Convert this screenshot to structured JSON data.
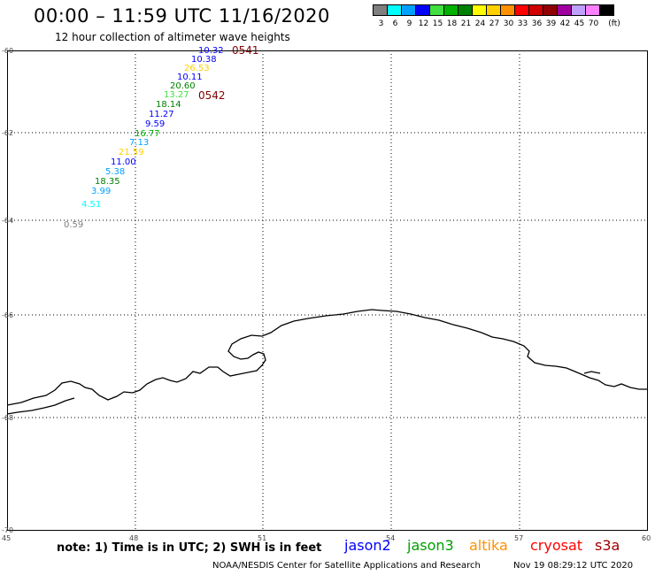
{
  "header": {
    "title": "00:00 – 11:59 UTC 11/16/2020",
    "subtitle": "12 hour collection of altimeter wave heights"
  },
  "legend": {
    "unit_label": "(ft)",
    "bins": [
      {
        "label": "3",
        "color": "#7f7f7f"
      },
      {
        "label": "6",
        "color": "#00ffff"
      },
      {
        "label": "9",
        "color": "#00a0ff"
      },
      {
        "label": "12",
        "color": "#0000ff"
      },
      {
        "label": "15",
        "color": "#40e040"
      },
      {
        "label": "18",
        "color": "#00b000"
      },
      {
        "label": "21",
        "color": "#008000"
      },
      {
        "label": "24",
        "color": "#ffff00"
      },
      {
        "label": "27",
        "color": "#ffd000"
      },
      {
        "label": "30",
        "color": "#ff9000"
      },
      {
        "label": "33",
        "color": "#ff0000"
      },
      {
        "label": "36",
        "color": "#d00000"
      },
      {
        "label": "39",
        "color": "#900000"
      },
      {
        "label": "42",
        "color": "#a000a0"
      },
      {
        "label": "45",
        "color": "#c0a0ff"
      },
      {
        "label": "70",
        "color": "#ff80ff"
      },
      {
        "label": "",
        "color": "#000000"
      }
    ]
  },
  "map": {
    "lat_labels": [
      "-60",
      "-62",
      "-64",
      "-66",
      "-68",
      "-70"
    ],
    "lon_labels": [
      "45",
      "48",
      "51",
      "54",
      "57",
      "60"
    ],
    "pass_labels": [
      {
        "text": "0541",
        "color": "#800000"
      },
      {
        "text": "0542",
        "color": "#800000"
      }
    ],
    "observations": [
      {
        "value": "10.32",
        "color": "#0000ff"
      },
      {
        "value": "10.38",
        "color": "#0000ff"
      },
      {
        "value": "26.53",
        "color": "#ffd000"
      },
      {
        "value": "10.11",
        "color": "#0000ff"
      },
      {
        "value": "20.60",
        "color": "#008000"
      },
      {
        "value": "13.27",
        "color": "#40e040"
      },
      {
        "value": "18.14",
        "color": "#008000"
      },
      {
        "value": "11.27",
        "color": "#0000ff"
      },
      {
        "value": "9.59",
        "color": "#0000ff"
      },
      {
        "value": "16.77",
        "color": "#00b000"
      },
      {
        "value": "7.13",
        "color": "#00a0ff"
      },
      {
        "value": "21.59",
        "color": "#ffd000"
      },
      {
        "value": "11.00",
        "color": "#0000ff"
      },
      {
        "value": "5.38",
        "color": "#00a0ff"
      },
      {
        "value": "18.35",
        "color": "#008000"
      },
      {
        "value": "3.99",
        "color": "#00a0ff"
      },
      {
        "value": "4.51",
        "color": "#00ffff"
      },
      {
        "value": "0.59",
        "color": "#7f7f7f"
      }
    ]
  },
  "footer": {
    "note": "note: 1) Time is in UTC; 2) SWH is in feet",
    "satellites": [
      {
        "name": "jason2",
        "color": "#0000ff"
      },
      {
        "name": "jason3",
        "color": "#00a000"
      },
      {
        "name": "altika",
        "color": "#ff9000"
      },
      {
        "name": "cryosat",
        "color": "#ff0000"
      },
      {
        "name": "s3a",
        "color": "#a00000"
      }
    ],
    "credit": "NOAA/NESDIS Center for Satellite Applications and Research",
    "timestamp": "Nov 19 08:29:12 UTC 2020"
  }
}
